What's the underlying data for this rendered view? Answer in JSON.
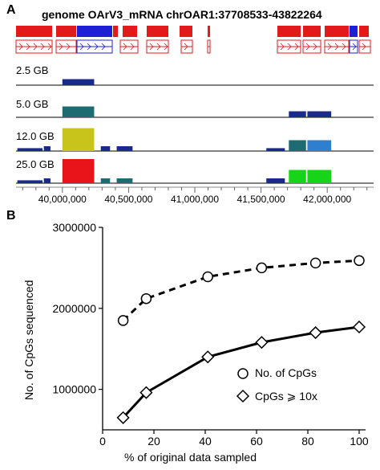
{
  "panel_a": {
    "letter": "A",
    "title": "genome OArV3_mRNA chrOAR1:37708533-43822264",
    "tracks": [
      {
        "label": "2.5 GB"
      },
      {
        "label": "5.0 GB"
      },
      {
        "label": "12.0 GB"
      },
      {
        "label": "25.0 GB"
      }
    ],
    "tick_labels": [
      "40,000,000",
      "40,500,000",
      "41,000,000",
      "41,500,000",
      "42,000,000"
    ]
  },
  "panel_b": {
    "letter": "B",
    "legend": [
      {
        "label": "No. of CpGs",
        "marker": "circle"
      },
      {
        "label": "CpGs ⩾ 10x",
        "marker": "diamond"
      }
    ]
  },
  "chart_data": [
    {
      "type": "genome_browser",
      "region": "chrOAR1:37708533-43822264",
      "xlim": [
        39650000,
        42350000
      ],
      "ticks": [
        40000000,
        40500000,
        41000000,
        41500000,
        42000000
      ],
      "gene_track_colors": {
        "plus": "#e31a1c",
        "minus": "#1f1fd6"
      },
      "tracks": [
        {
          "name": "2.5 GB",
          "features": [
            {
              "start": 40000000,
              "end": 40240000,
              "level": 0.25,
              "color": "#1a2a8a"
            }
          ]
        },
        {
          "name": "5.0 GB",
          "features": [
            {
              "start": 40000000,
              "end": 40240000,
              "level": 0.45,
              "color": "#1e6b72"
            },
            {
              "start": 41710000,
              "end": 41840000,
              "level": 0.25,
              "color": "#1a2a8a"
            },
            {
              "start": 41850000,
              "end": 42030000,
              "level": 0.25,
              "color": "#1a2a8a"
            }
          ]
        },
        {
          "name": "12.0 GB",
          "features": [
            {
              "start": 39660000,
              "end": 39850000,
              "level": 0.12,
              "color": "#1a2a8a"
            },
            {
              "start": 39860000,
              "end": 39910000,
              "level": 0.2,
              "color": "#1a2a8a"
            },
            {
              "start": 40000000,
              "end": 40240000,
              "level": 0.95,
              "color": "#c8c41a"
            },
            {
              "start": 40290000,
              "end": 40360000,
              "level": 0.2,
              "color": "#1a2a8a"
            },
            {
              "start": 40410000,
              "end": 40530000,
              "level": 0.2,
              "color": "#1a2a8a"
            },
            {
              "start": 41540000,
              "end": 41680000,
              "level": 0.12,
              "color": "#1a2a8a"
            },
            {
              "start": 41710000,
              "end": 41840000,
              "level": 0.45,
              "color": "#1e6b72"
            },
            {
              "start": 41850000,
              "end": 42030000,
              "level": 0.45,
              "color": "#2e7fd0"
            }
          ]
        },
        {
          "name": "25.0 GB",
          "features": [
            {
              "start": 39660000,
              "end": 39850000,
              "level": 0.12,
              "color": "#1a2a8a"
            },
            {
              "start": 39860000,
              "end": 39910000,
              "level": 0.2,
              "color": "#1a2a8a"
            },
            {
              "start": 40000000,
              "end": 40240000,
              "level": 1.0,
              "color": "#e8141a"
            },
            {
              "start": 40290000,
              "end": 40360000,
              "level": 0.2,
              "color": "#1e6b72"
            },
            {
              "start": 40410000,
              "end": 40530000,
              "level": 0.2,
              "color": "#1e6b72"
            },
            {
              "start": 41540000,
              "end": 41680000,
              "level": 0.2,
              "color": "#1a2a8a"
            },
            {
              "start": 41710000,
              "end": 41840000,
              "level": 0.55,
              "color": "#18d418"
            },
            {
              "start": 41850000,
              "end": 42030000,
              "level": 0.55,
              "color": "#18d418"
            }
          ]
        }
      ]
    },
    {
      "type": "line",
      "xlabel": "% of original data sampled",
      "ylabel": "No. of CpGs sequenced",
      "xlim": [
        0,
        100
      ],
      "ylim": [
        500000,
        3000000
      ],
      "xticks": [
        0,
        20,
        40,
        60,
        80,
        100
      ],
      "yticks": [
        1000000,
        2000000,
        3000000
      ],
      "legend_position": "lower-right",
      "grid": false,
      "series": [
        {
          "name": "No. of CpGs",
          "marker": "circle",
          "line": "dashed",
          "x": [
            8,
            17,
            41,
            62,
            83,
            100
          ],
          "y": [
            1850000,
            2120000,
            2390000,
            2500000,
            2560000,
            2590000
          ]
        },
        {
          "name": "CpGs ⩾ 10x",
          "marker": "diamond",
          "line": "solid",
          "x": [
            8,
            17,
            41,
            62,
            83,
            100
          ],
          "y": [
            650000,
            960000,
            1400000,
            1580000,
            1700000,
            1770000
          ]
        }
      ]
    }
  ]
}
